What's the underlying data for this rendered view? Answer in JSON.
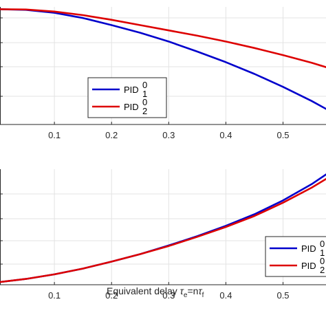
{
  "chart_data": [
    {
      "type": "line",
      "title": "",
      "xlabel": "",
      "ylabel": "",
      "xlim": [
        0,
        0.58
      ],
      "ylim": [
        0,
        1
      ],
      "xticks": [
        0.1,
        0.2,
        0.3,
        0.4,
        0.5
      ],
      "x_tick_labels": [
        "0.1",
        "0.2",
        "0.3",
        "0.4",
        "0.5"
      ],
      "grid": true,
      "legend_position": "lower-center",
      "series": [
        {
          "base": "PID",
          "sup": "0",
          "sub": "1",
          "color": "#0000cc",
          "x": [
            0,
            0.05,
            0.1,
            0.15,
            0.2,
            0.25,
            0.3,
            0.35,
            0.4,
            0.45,
            0.5,
            0.55,
            0.58
          ],
          "y": [
            0.98,
            0.975,
            0.95,
            0.905,
            0.845,
            0.78,
            0.705,
            0.62,
            0.53,
            0.43,
            0.32,
            0.2,
            0.12
          ]
        },
        {
          "base": "PID",
          "sup": "0",
          "sub": "2",
          "color": "#dd0000",
          "x": [
            0,
            0.05,
            0.1,
            0.15,
            0.2,
            0.25,
            0.3,
            0.35,
            0.4,
            0.45,
            0.5,
            0.55,
            0.58
          ],
          "y": [
            0.98,
            0.978,
            0.96,
            0.93,
            0.89,
            0.845,
            0.8,
            0.755,
            0.705,
            0.65,
            0.59,
            0.525,
            0.48
          ]
        }
      ]
    },
    {
      "type": "line",
      "title": "",
      "xlabel": "Equivalent delay",
      "xlabel_math": {
        "tau": "τ",
        "sub_e": "e",
        "eq": "=n",
        "sub_f": "f"
      },
      "ylabel": "",
      "xlim": [
        0,
        0.58
      ],
      "ylim": [
        0,
        1
      ],
      "xticks": [
        0.1,
        0.2,
        0.3,
        0.4,
        0.5
      ],
      "x_tick_labels": [
        "0.1",
        "0.2",
        "0.3",
        "0.4",
        "0.5"
      ],
      "grid": true,
      "legend_position": "lower-right",
      "series": [
        {
          "base": "PID",
          "sup": "0",
          "sub": "1",
          "color": "#0000cc",
          "x": [
            0,
            0.05,
            0.1,
            0.15,
            0.2,
            0.25,
            0.3,
            0.35,
            0.4,
            0.45,
            0.5,
            0.55,
            0.58
          ],
          "y": [
            0.02,
            0.05,
            0.09,
            0.14,
            0.2,
            0.265,
            0.34,
            0.42,
            0.51,
            0.61,
            0.73,
            0.87,
            0.97
          ]
        },
        {
          "base": "PID",
          "sup": "0",
          "sub": "2",
          "color": "#dd0000",
          "x": [
            0,
            0.05,
            0.1,
            0.15,
            0.2,
            0.25,
            0.3,
            0.35,
            0.4,
            0.45,
            0.5,
            0.55,
            0.58
          ],
          "y": [
            0.02,
            0.05,
            0.09,
            0.14,
            0.2,
            0.265,
            0.335,
            0.415,
            0.5,
            0.595,
            0.71,
            0.84,
            0.93
          ]
        }
      ]
    }
  ]
}
